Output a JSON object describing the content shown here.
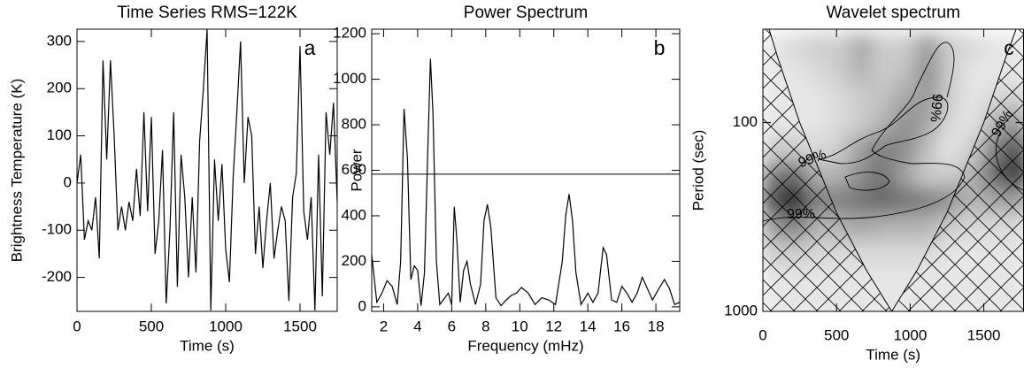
{
  "chart_data": [
    {
      "type": "line",
      "title": "Time Series  RMS=122K",
      "panel_label": "a",
      "x_label": "Time (s)",
      "y_label": "Brightness Temperature (K)",
      "color": "#000000",
      "x": [
        0,
        25,
        50,
        75,
        100,
        125,
        150,
        175,
        200,
        225,
        250,
        275,
        300,
        325,
        350,
        375,
        400,
        425,
        450,
        475,
        500,
        525,
        550,
        575,
        600,
        625,
        650,
        675,
        700,
        725,
        750,
        775,
        800,
        825,
        850,
        875,
        900,
        925,
        950,
        975,
        1000,
        1025,
        1050,
        1075,
        1100,
        1125,
        1150,
        1175,
        1200,
        1225,
        1250,
        1275,
        1300,
        1325,
        1350,
        1375,
        1400,
        1425,
        1450,
        1475,
        1500,
        1525,
        1550,
        1575,
        1600,
        1625,
        1650,
        1675,
        1700,
        1725,
        1750
      ],
      "values": [
        0,
        60,
        -120,
        -80,
        -100,
        -30,
        -160,
        260,
        50,
        260,
        100,
        -100,
        -50,
        -100,
        -40,
        -80,
        30,
        -70,
        150,
        -60,
        140,
        -150,
        -80,
        70,
        -255,
        -100,
        150,
        -220,
        60,
        -30,
        -200,
        -30,
        -190,
        90,
        200,
        325,
        -270,
        50,
        -80,
        40,
        -140,
        -210,
        10,
        150,
        300,
        0,
        140,
        100,
        -150,
        -50,
        -180,
        -80,
        0,
        -160,
        -100,
        -50,
        -80,
        -250,
        -30,
        20,
        290,
        -60,
        -120,
        -30,
        -270,
        60,
        -240,
        150,
        60,
        170,
        -40
      ],
      "xlim": [
        0,
        1750
      ],
      "xticks": [
        0,
        500,
        1000,
        1500
      ],
      "ylim": [
        -272,
        326
      ],
      "yticks": [
        -200,
        -100,
        0,
        100,
        200,
        300
      ]
    },
    {
      "type": "line",
      "title": "Power Spectrum",
      "panel_label": "b",
      "x_label": "Frequency (mHz)",
      "y_label": "Power",
      "color": "#000000",
      "hline": 583,
      "x": [
        1.3,
        1.6,
        1.9,
        2.2,
        2.5,
        2.8,
        3.0,
        3.2,
        3.4,
        3.6,
        3.8,
        4.0,
        4.2,
        4.4,
        4.6,
        4.75,
        4.9,
        5.1,
        5.3,
        5.5,
        5.8,
        6.0,
        6.15,
        6.3,
        6.5,
        6.7,
        6.9,
        7.1,
        7.4,
        7.7,
        7.9,
        8.1,
        8.3,
        8.6,
        8.9,
        9.2,
        9.5,
        9.8,
        10.1,
        10.5,
        10.9,
        11.3,
        11.7,
        12.1,
        12.5,
        12.7,
        12.9,
        13.1,
        13.3,
        13.6,
        14.0,
        14.3,
        14.6,
        14.9,
        15.1,
        15.4,
        15.7,
        16.0,
        16.3,
        16.6,
        16.9,
        17.2,
        17.5,
        17.8,
        18.1,
        18.5,
        18.8,
        19.1,
        19.4
      ],
      "values": [
        230,
        20,
        60,
        115,
        90,
        10,
        200,
        870,
        650,
        120,
        180,
        160,
        5,
        150,
        700,
        1090,
        850,
        200,
        10,
        30,
        60,
        10,
        440,
        300,
        20,
        160,
        200,
        100,
        10,
        100,
        380,
        450,
        350,
        40,
        5,
        30,
        50,
        60,
        85,
        60,
        10,
        40,
        30,
        10,
        200,
        400,
        495,
        380,
        150,
        10,
        60,
        20,
        60,
        260,
        230,
        30,
        20,
        90,
        60,
        20,
        60,
        130,
        80,
        30,
        70,
        120,
        80,
        10,
        20
      ],
      "xlim": [
        1.3,
        19.4
      ],
      "xticks": [
        2,
        4,
        6,
        8,
        10,
        12,
        14,
        16,
        18
      ],
      "ylim": [
        -20,
        1220
      ],
      "yticks": [
        0,
        200,
        400,
        600,
        800,
        1000,
        1200
      ]
    },
    {
      "type": "heatmap",
      "title": "Wavelet spectrum",
      "panel_label": "c",
      "x_label": "Time (s)",
      "y_label": "Period (sec)",
      "x": [
        75,
        225,
        375,
        525,
        675,
        825,
        975,
        1125,
        1275,
        1425,
        1575,
        1725
      ],
      "y": [
        40,
        55,
        75,
        100,
        140,
        190,
        260,
        360,
        500,
        700,
        950
      ],
      "z": [
        [
          0.1,
          0.15,
          0.2,
          0.2,
          0.35,
          0.2,
          0.2,
          0.4,
          0.2,
          0.15,
          0.1,
          0.1
        ],
        [
          0.1,
          0.1,
          0.15,
          0.2,
          0.3,
          0.2,
          0.25,
          0.45,
          0.2,
          0.1,
          0.1,
          0.1
        ],
        [
          0.1,
          0.1,
          0.1,
          0.15,
          0.2,
          0.25,
          0.35,
          0.4,
          0.2,
          0.1,
          0.15,
          0.2
        ],
        [
          0.1,
          0.1,
          0.1,
          0.15,
          0.2,
          0.3,
          0.45,
          0.35,
          0.15,
          0.1,
          0.3,
          0.4
        ],
        [
          0.2,
          0.2,
          0.15,
          0.2,
          0.4,
          0.5,
          0.45,
          0.25,
          0.1,
          0.2,
          0.5,
          0.7
        ],
        [
          0.5,
          0.6,
          0.3,
          0.3,
          0.45,
          0.55,
          0.35,
          0.2,
          0.2,
          0.3,
          0.6,
          0.85
        ],
        [
          0.7,
          0.95,
          0.5,
          0.5,
          0.55,
          0.6,
          0.55,
          0.5,
          0.45,
          0.3,
          0.35,
          0.4
        ],
        [
          0.4,
          0.5,
          0.3,
          0.3,
          0.35,
          0.3,
          0.3,
          0.3,
          0.2,
          0.15,
          0.15,
          0.15
        ],
        [
          0.2,
          0.2,
          0.15,
          0.15,
          0.15,
          0.15,
          0.15,
          0.15,
          0.1,
          0.1,
          0.1,
          0.1
        ],
        [
          0.1,
          0.1,
          0.1,
          0.1,
          0.1,
          0.1,
          0.1,
          0.1,
          0.1,
          0.1,
          0.1,
          0.1
        ],
        [
          0.1,
          0.1,
          0.1,
          0.1,
          0.1,
          0.1,
          0.1,
          0.1,
          0.1,
          0.1,
          0.1,
          0.1
        ]
      ],
      "cone_of_influence": {
        "x": [
          0,
          100,
          250,
          500,
          700,
          875,
          1050,
          1250,
          1500,
          1650,
          1770
        ],
        "values": [
          25,
          45,
          100,
          300,
          600,
          1000,
          600,
          300,
          100,
          45,
          25
        ]
      },
      "annotations": [
        "99%",
        "99%",
        "99%",
        "99%"
      ],
      "xlim": [
        0,
        1770
      ],
      "xticks": [
        0,
        500,
        1000,
        1500
      ],
      "ylim": [
        32,
        1000
      ],
      "yticks": [
        100,
        1000
      ],
      "log_y": true,
      "y_reversed": true
    }
  ]
}
